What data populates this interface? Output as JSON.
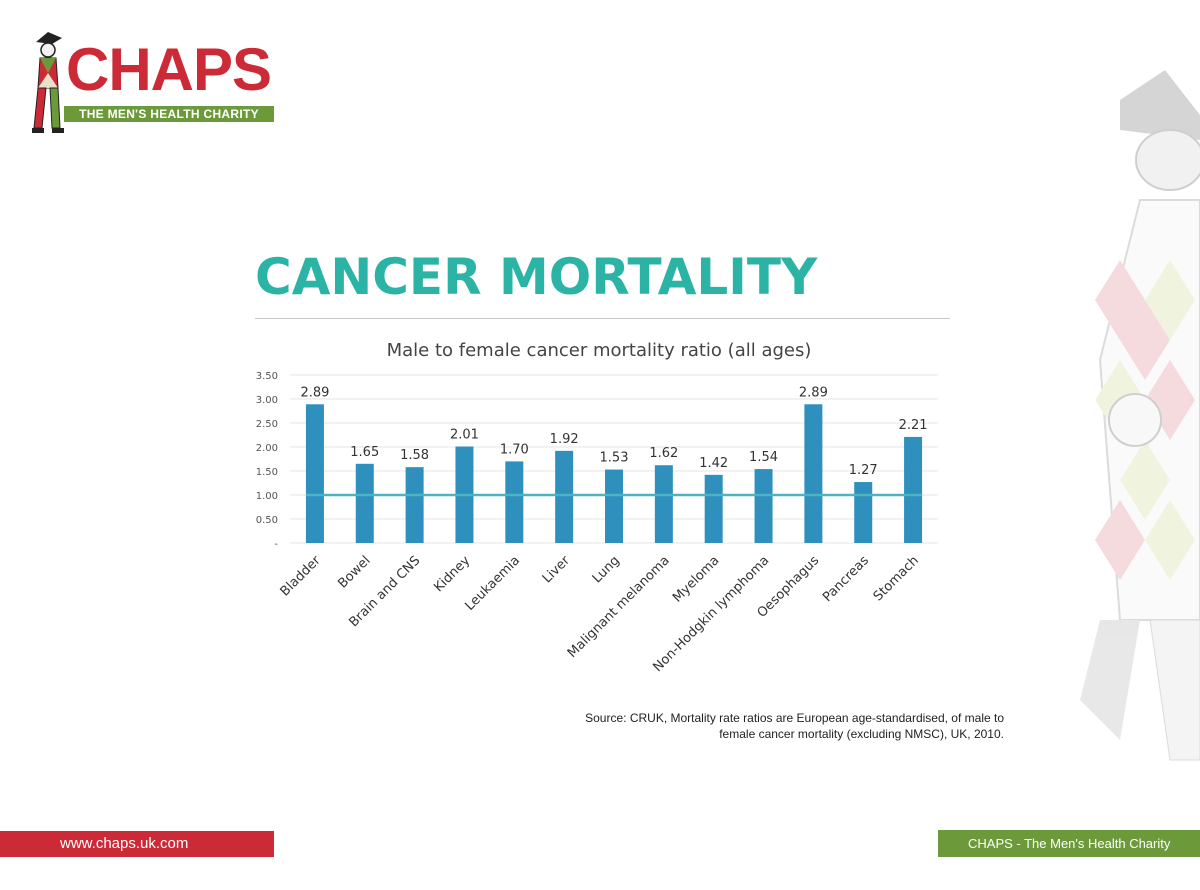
{
  "logo": {
    "word": "CHAPS",
    "tagline": "THE MEN'S HEALTH CHARITY"
  },
  "heading": "CANCER MORTALITY",
  "source_line1": "Source: CRUK, Mortality rate ratios are European age-standardised, of male to",
  "source_line2": "female cancer mortality (excluding NMSC), UK, 2010.",
  "footer": {
    "url": "www.chaps.uk.com",
    "org": "CHAPS - The Men's Health Charity"
  },
  "colors": {
    "bar": "#2f8fbd",
    "line": "#4bb3c2",
    "heading": "#2bb4a5",
    "brand_red": "#cc2a36",
    "brand_green": "#6c9a3a"
  },
  "chart_data": {
    "type": "bar",
    "title": "Male to female cancer mortality ratio (all ages)",
    "categories": [
      "Bladder",
      "Bowel",
      "Brain and CNS",
      "Kidney",
      "Leukaemia",
      "Liver",
      "Lung",
      "Malignant melanoma",
      "Myeloma",
      "Non-Hodgkin lymphoma",
      "Oesophagus",
      "Pancreas",
      "Stomach"
    ],
    "values": [
      2.89,
      1.65,
      1.58,
      2.01,
      1.7,
      1.92,
      1.53,
      1.62,
      1.42,
      1.54,
      2.89,
      1.27,
      2.21
    ],
    "value_labels": [
      "2.89",
      "1.65",
      "1.58",
      "2.01",
      "1.70",
      "1.92",
      "1.53",
      "1.62",
      "1.42",
      "1.54",
      "2.89",
      "1.27",
      "2.21"
    ],
    "yticks": [
      0,
      0.5,
      1.0,
      1.5,
      2.0,
      2.5,
      3.0,
      3.5
    ],
    "ytick_labels": [
      "-",
      "0.50",
      "1.00",
      "1.50",
      "2.00",
      "2.50",
      "3.00",
      "3.50"
    ],
    "ylim": [
      0,
      3.5
    ],
    "reference_line": 1.0,
    "grid": true,
    "legend": "none"
  }
}
